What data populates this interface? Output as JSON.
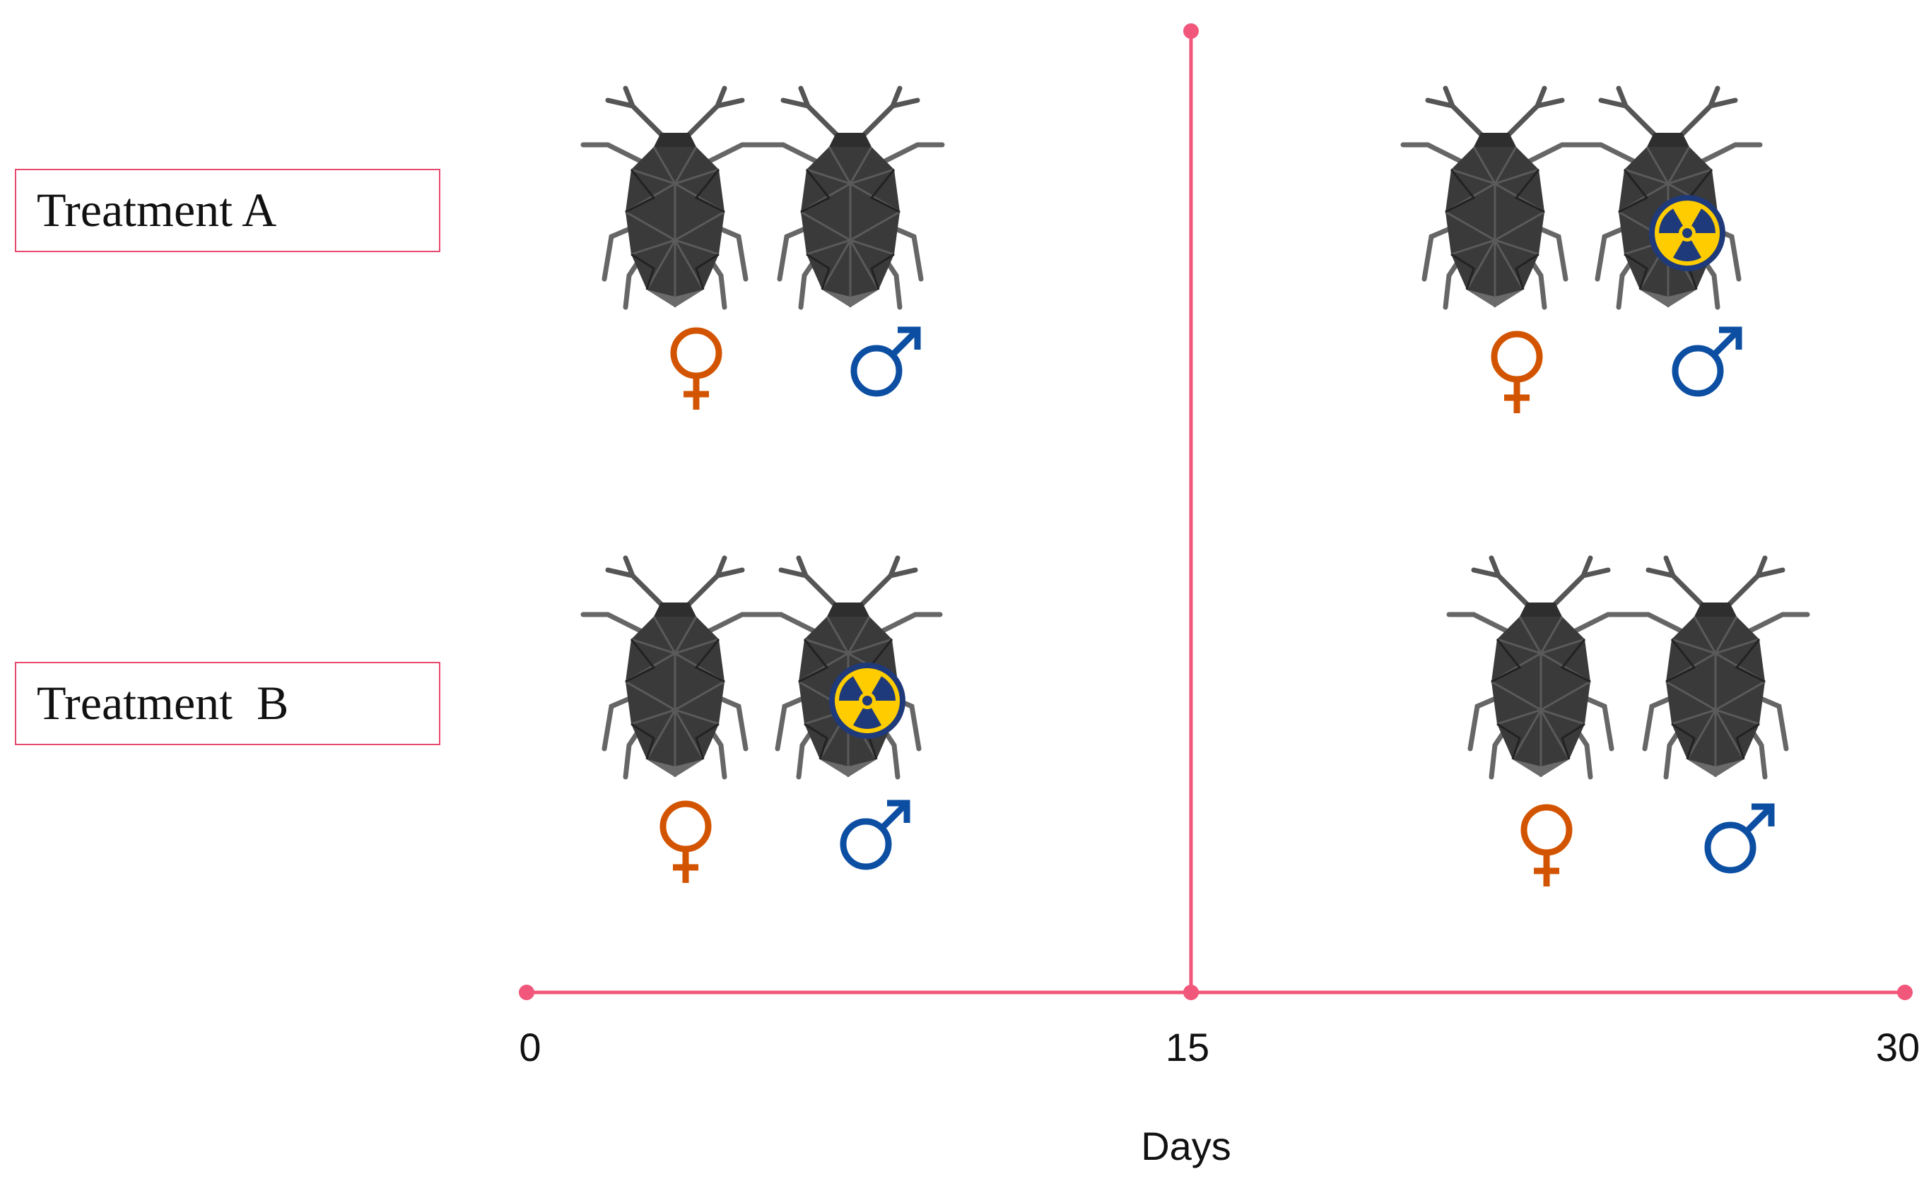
{
  "colors": {
    "axis": "#f0577a",
    "label_box": "#e84a6e",
    "female": "#d35400",
    "male": "#0b4ea2",
    "bug_body": "#3a3a3a",
    "radiation_fill": "#ffcc00",
    "radiation_ring": "#1f3a7a"
  },
  "treatments": [
    {
      "label": "Treatment A",
      "before_day_15": {
        "female": "normal",
        "male": "normal"
      },
      "after_day_15": {
        "female": "normal",
        "male": "irradiated"
      }
    },
    {
      "label": "Treatment  B",
      "before_day_15": {
        "female": "normal",
        "male": "irradiated"
      },
      "after_day_15": {
        "female": "normal",
        "male": "normal"
      }
    }
  ],
  "axis": {
    "title": "Days",
    "ticks": [
      "0",
      "15",
      "30"
    ]
  },
  "icons": {
    "insect": "stink-bug-icon",
    "female": "female-symbol-icon",
    "male": "male-symbol-icon",
    "radiation": "radiation-icon"
  }
}
